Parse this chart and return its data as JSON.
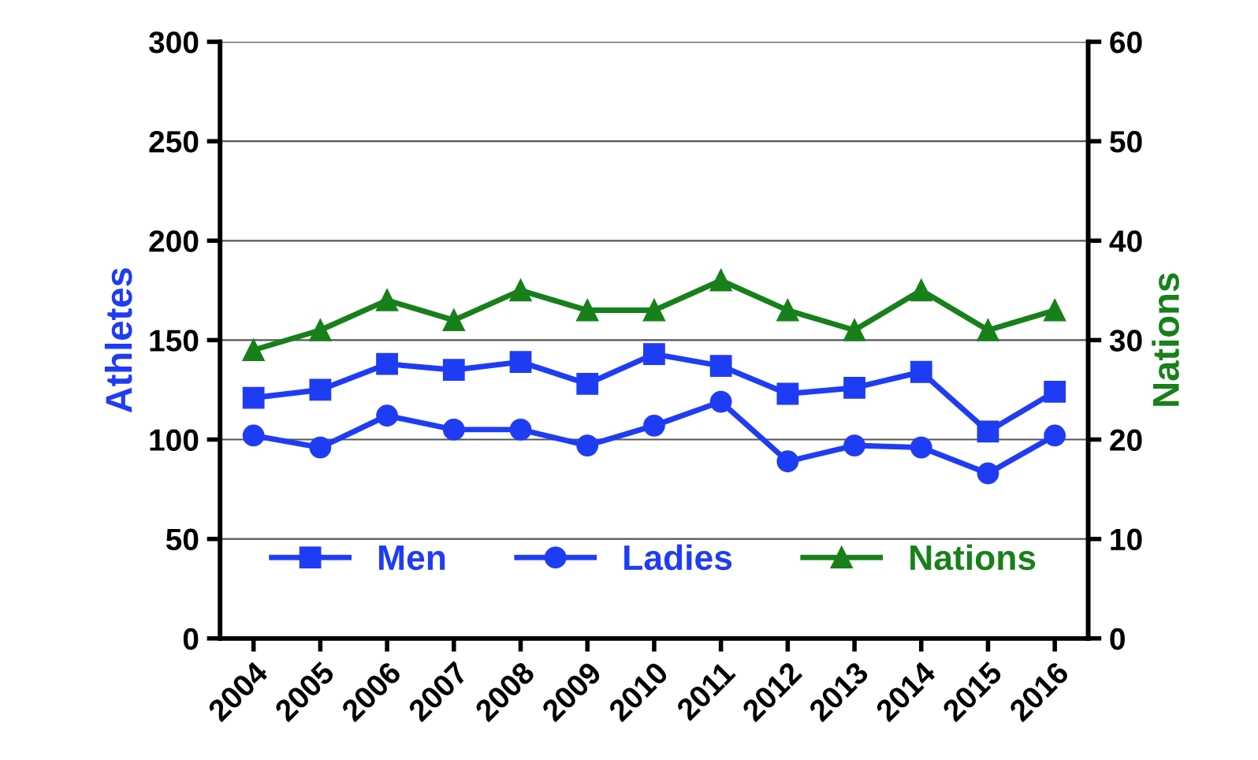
{
  "chart_data": {
    "type": "line",
    "ylabel": "Athletes",
    "y2label": "Nations",
    "categories": [
      "2004",
      "2005",
      "2006",
      "2007",
      "2008",
      "2009",
      "2010",
      "2011",
      "2012",
      "2013",
      "2014",
      "2015",
      "2016"
    ],
    "series": [
      {
        "name": "Men",
        "color": "#1f3cf5",
        "marker": "square",
        "values": [
          121,
          125,
          138,
          135,
          139,
          128,
          143,
          137,
          123,
          126,
          134,
          104,
          124
        ]
      },
      {
        "name": "Ladies",
        "color": "#1f3cf5",
        "marker": "circle",
        "values": [
          102,
          96,
          112,
          105,
          105,
          97,
          107,
          119,
          89,
          97,
          96,
          83,
          102
        ]
      },
      {
        "name": "Nations",
        "color": "#17801a",
        "marker": "triangle",
        "axis": "y2",
        "values": [
          29,
          31,
          34,
          32,
          35,
          33,
          33,
          36,
          33,
          31,
          35,
          31,
          33
        ]
      }
    ],
    "ylim": [
      0,
      300
    ],
    "yticks": [
      0,
      50,
      100,
      150,
      200,
      250,
      300
    ],
    "y2lim": [
      0,
      60
    ],
    "y2ticks": [
      0,
      10,
      20,
      30,
      40,
      50,
      60
    ],
    "grid": "y",
    "legend": "bottom",
    "line_style": "solid"
  }
}
